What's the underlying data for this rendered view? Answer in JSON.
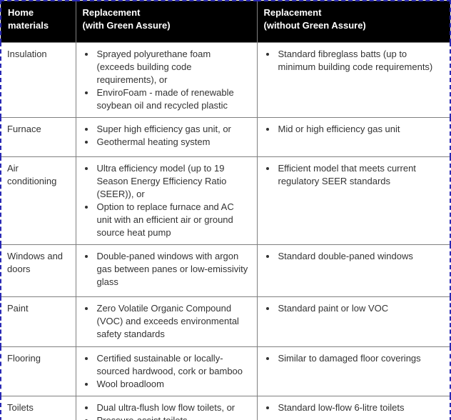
{
  "page": {
    "background": "#ffffff"
  },
  "table": {
    "name": "green-assure-replacement-comparison",
    "colors": {
      "header_bg": "#000000",
      "header_text": "#ffffff",
      "body_text": "#333333",
      "grid_line": "#808080",
      "outer_border": "#2a2ab5"
    },
    "headers": [
      {
        "label": "Home\nmaterials"
      },
      {
        "label": "Replacement\n(with Green Assure)"
      },
      {
        "label": "Replacement\n(without Green Assure)"
      }
    ],
    "rows": [
      {
        "material": "Insulation",
        "with_assure": [
          "Sprayed polyurethane foam (exceeds building code requirements), or",
          "EnviroFoam - made of renewable soybean oil and recycled plastic"
        ],
        "without_assure": [
          "Standard fibreglass batts (up to minimum building code requirements)"
        ]
      },
      {
        "material": "Furnace",
        "with_assure": [
          "Super high efficiency gas unit, or",
          "Geothermal heating system"
        ],
        "without_assure": [
          "Mid or high efficiency gas unit"
        ]
      },
      {
        "material": "Air conditioning",
        "with_assure": [
          "Ultra efficiency model (up to 19 Season Energy Efficiency Ratio (SEER)), or",
          "Option to replace furnace and AC unit with an efficient air or ground source heat pump"
        ],
        "without_assure": [
          "Efficient model that meets current regulatory SEER standards"
        ]
      },
      {
        "material": "Windows and doors",
        "with_assure": [
          "Double-paned windows with argon gas between panes or low-emissivity glass"
        ],
        "without_assure": [
          "Standard double-paned windows"
        ]
      },
      {
        "material": "Paint",
        "with_assure": [
          "Zero Volatile Organic Compound (VOC) and exceeds environmental safety standards"
        ],
        "without_assure": [
          "Standard paint or low VOC"
        ]
      },
      {
        "material": "Flooring",
        "with_assure": [
          "Certified sustainable or locally-sourced hardwood, cork or bamboo",
          "Wool broadloom"
        ],
        "without_assure": [
          "Similar to damaged floor coverings"
        ]
      },
      {
        "material": "Toilets",
        "with_assure": [
          "Dual ultra-flush low flow toilets, or",
          "Pressure-assist toilets"
        ],
        "without_assure": [
          "Standard low-flow 6-litre toilets"
        ]
      }
    ]
  }
}
